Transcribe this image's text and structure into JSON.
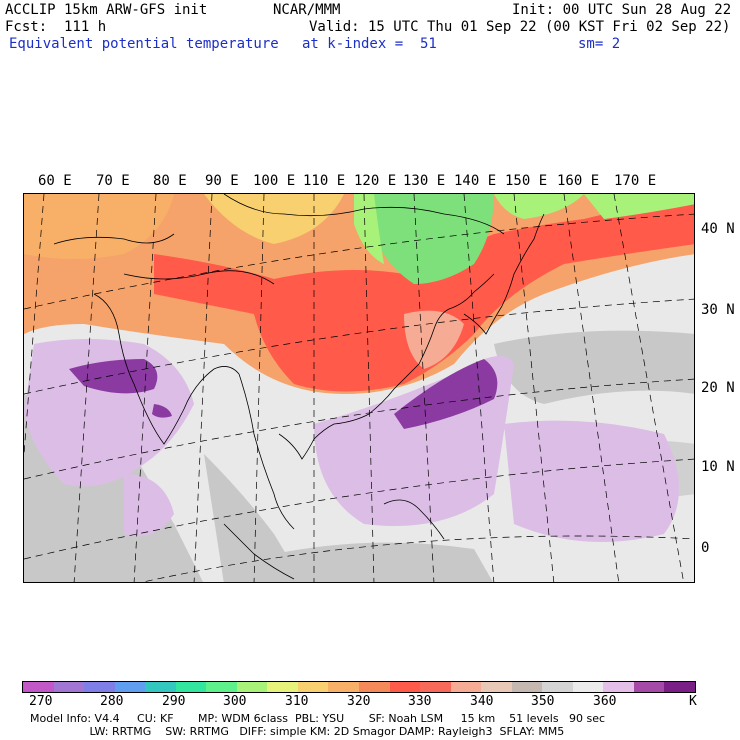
{
  "header": {
    "title": "ACCLIP 15km ARW-GFS init",
    "org": "NCAR/MMM",
    "init": "Init: 00 UTC Sun 28 Aug 22",
    "fcst": "Fcst:  111 h",
    "valid": "Valid: 15 UTC Thu 01 Sep 22 (00 KST Fri 02 Sep 22)",
    "field": "Equivalent potential temperature",
    "level": "at k-index =  51",
    "smooth": "sm= 2"
  },
  "map": {
    "lon_labels": [
      "60 E",
      "70 E",
      "80 E",
      "90 E",
      "100 E",
      "110 E",
      "120 E",
      "130 E",
      "140 E",
      "150 E",
      "160 E",
      "170 E"
    ],
    "lat_labels": [
      "40 N",
      "30 N",
      "20 N",
      "10 N",
      "0"
    ],
    "colors": {
      "dry_cold": "#f5a36a",
      "warm": "#ff5a4a",
      "green": "#7de07a",
      "moist": "#d9b3e3",
      "very_moist": "#8a3aa0",
      "grey": "#c8c8c8",
      "light": "#efefef"
    }
  },
  "colorbar": {
    "colors": [
      "#c258c8",
      "#a177d3",
      "#7f7fe7",
      "#5f9ef0",
      "#33c7c0",
      "#33e6a0",
      "#5ef08a",
      "#a8f27a",
      "#e6f27a",
      "#f8d070",
      "#f8b068",
      "#f48a5a",
      "#ff5a4a",
      "#f76a5a",
      "#f6ab94",
      "#e8c9b8",
      "#c4b8b0",
      "#d4d4d4",
      "#ebebeb",
      "#e4bfe8",
      "#a64aa8",
      "#7a1f86"
    ],
    "labels": [
      "270",
      "280",
      "290",
      "300",
      "310",
      "320",
      "330",
      "340",
      "350",
      "360"
    ],
    "unit": "K"
  },
  "footer": {
    "line1": "Model Info: V4.4     CU: KF       MP: WDM 6class  PBL: YSU       SF: Noah LSM     15 km    51 levels   90 sec",
    "line2": "                 LW: RRTMG    SW: RRTMG   DIFF: simple KM: 2D Smagor DAMP: Rayleigh3  SFLAY: MM5"
  }
}
